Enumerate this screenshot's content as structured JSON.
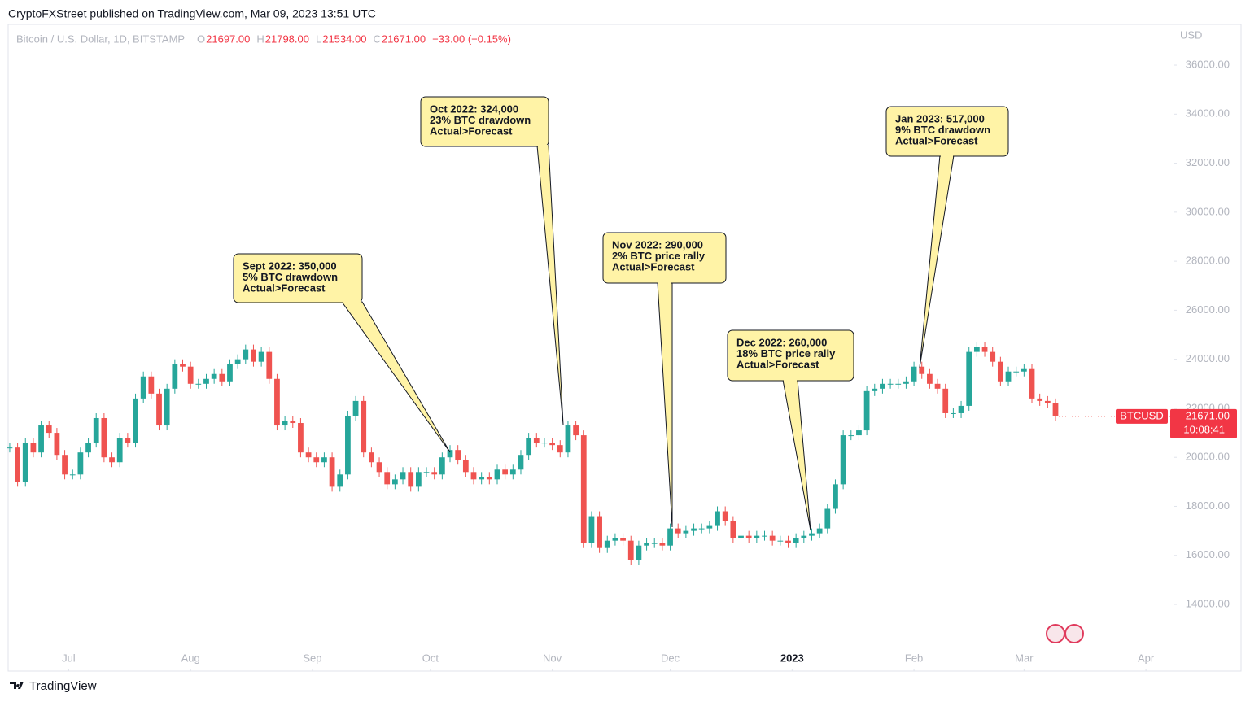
{
  "header": {
    "publisher": "CryptoFXStreet published on TradingView.com, Mar 09, 2023 13:51 UTC",
    "symbol": "Bitcoin / U.S. Dollar, 1D, BITSTAMP",
    "ohlc": [
      {
        "key": "O",
        "value": "21697.00"
      },
      {
        "key": "H",
        "value": "21798.00"
      },
      {
        "key": "L",
        "value": "21534.00"
      },
      {
        "key": "C",
        "value": "21671.00"
      }
    ],
    "change": "−33.00 (−0.15%)"
  },
  "chart_data": {
    "type": "candlestick",
    "currency": "USD",
    "up_color": "#26a69a",
    "down_color": "#ef5350",
    "values": [
      20400,
      19000,
      20600,
      20200,
      21300,
      21000,
      20100,
      19300,
      19300,
      20200,
      20600,
      21600,
      20000,
      19800,
      20800,
      20600,
      22400,
      23300,
      22600,
      21300,
      22800,
      23800,
      23700,
      23000,
      23000,
      23200,
      23400,
      23100,
      23800,
      24000,
      24400,
      23900,
      24300,
      23200,
      21300,
      21500,
      21400,
      20200,
      20000,
      19800,
      20000,
      18800,
      19300,
      21700,
      22300,
      20200,
      19800,
      19400,
      18900,
      19100,
      19400,
      18800,
      19400,
      19400,
      19300,
      20000,
      20300,
      19900,
      19400,
      19100,
      19200,
      19100,
      19500,
      19300,
      19500,
      20100,
      20800,
      20600,
      20600,
      20500,
      20200,
      21300,
      20900,
      16500,
      17600,
      16300,
      16600,
      16700,
      16600,
      15800,
      16400,
      16500,
      16500,
      16400,
      17100,
      16900,
      17000,
      17100,
      17100,
      17200,
      17800,
      17400,
      16700,
      16800,
      16700,
      16800,
      16800,
      16600,
      16600,
      16500,
      16700,
      16800,
      16900,
      17100,
      17900,
      18900,
      20900,
      20900,
      21100,
      22700,
      22800,
      23000,
      23000,
      23000,
      23100,
      23700,
      23400,
      23000,
      22800,
      21800,
      21800,
      22100,
      24300,
      24500,
      24300,
      23900,
      23100,
      23500,
      23500,
      23600,
      22400,
      22300,
      22200,
      21700
    ],
    "xlim": [
      -0.2,
      147.8
    ],
    "xticks": [
      {
        "value": 7.5,
        "label": "Jul"
      },
      {
        "value": 23,
        "label": "Aug"
      },
      {
        "value": 38.5,
        "label": "Sep"
      },
      {
        "value": 53.5,
        "label": "Oct"
      },
      {
        "value": 69,
        "label": "Nov"
      },
      {
        "value": 84,
        "label": "Dec"
      },
      {
        "value": 99.5,
        "label": "2023"
      },
      {
        "value": 115,
        "label": "Feb"
      },
      {
        "value": 129,
        "label": "Mar"
      },
      {
        "value": 144.5,
        "label": "Apr"
      }
    ],
    "ylim": [
      11280,
      37660
    ],
    "yticks": [
      {
        "value": 14000,
        "label": "14000.00"
      },
      {
        "value": 16000,
        "label": "16000.00"
      },
      {
        "value": 18000,
        "label": "18000.00"
      },
      {
        "value": 20000,
        "label": "20000.00"
      },
      {
        "value": 22000,
        "label": "22000.00"
      },
      {
        "value": 24000,
        "label": "24000.00"
      },
      {
        "value": 26000,
        "label": "26000.00"
      },
      {
        "value": 28000,
        "label": "28000.00"
      },
      {
        "value": 30000,
        "label": "30000.00"
      },
      {
        "value": 32000,
        "label": "32000.00"
      },
      {
        "value": 34000,
        "label": "34000.00"
      },
      {
        "value": 36000,
        "label": "36000.00"
      }
    ],
    "last_price": {
      "value": 21671,
      "label": "21671.00",
      "ticker": "BTCUSD",
      "countdown": "10:08:41"
    },
    "annotations": [
      {
        "lines": [
          "Sept 2022: 350,000",
          "5% BTC drawdown",
          "Actual>Forecast"
        ]
      },
      {
        "lines": [
          "Oct 2022: 324,000",
          "23% BTC drawdown",
          "Actual>Forecast"
        ]
      },
      {
        "lines": [
          "Nov 2022: 290,000",
          "2% BTC price rally",
          "Actual>Forecast"
        ]
      },
      {
        "lines": [
          "Dec 2022: 260,000",
          "18% BTC price rally",
          "Actual>Forecast"
        ]
      },
      {
        "lines": [
          "Jan 2023: 517,000",
          "9% BTC drawdown",
          "Actual>Forecast"
        ]
      }
    ]
  },
  "footer": {
    "brand": "TradingView"
  }
}
